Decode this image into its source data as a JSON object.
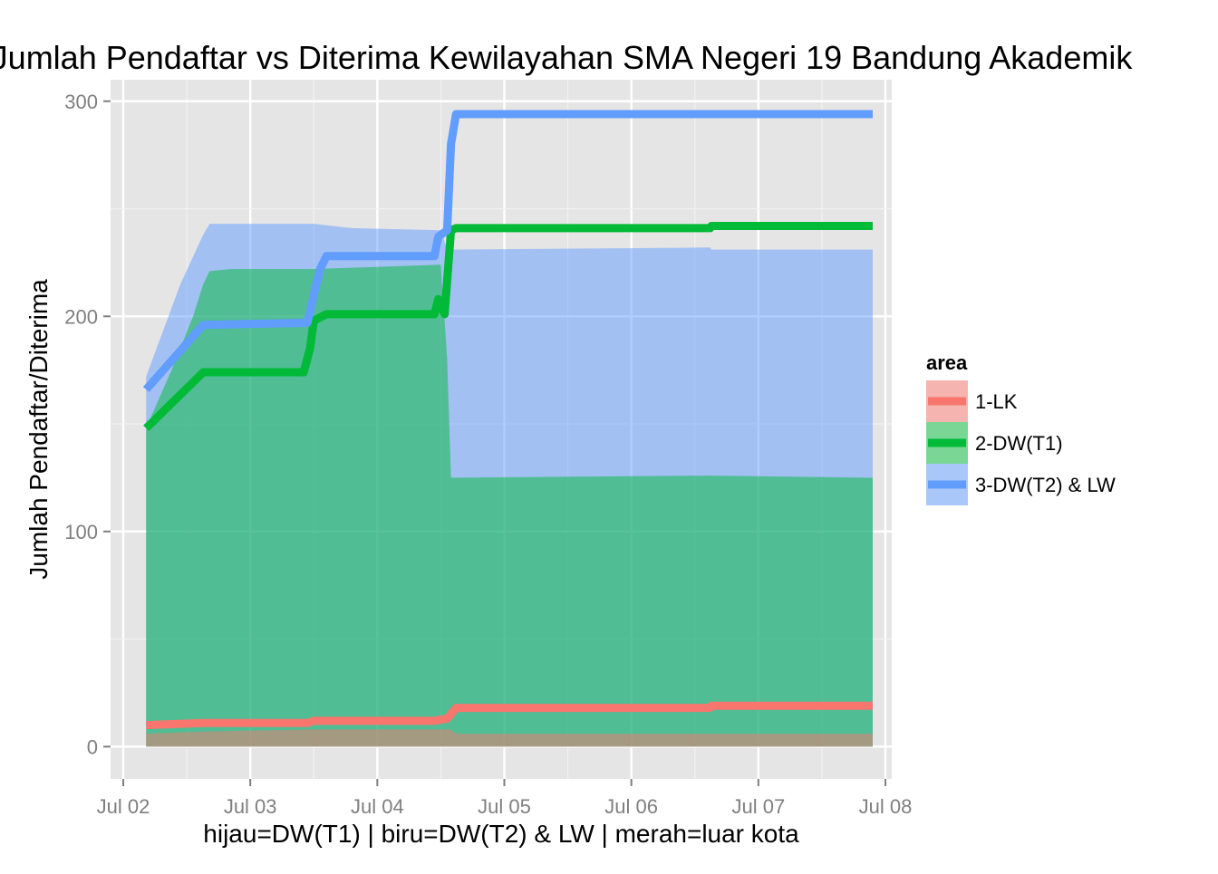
{
  "chart_data": {
    "type": "area",
    "title": "Jumlah Pendaftar vs Diterima Kewilayahan SMA Negeri 19 Bandung Akademik",
    "xlabel": "hijau=DW(T1) | biru=DW(T2) & LW | merah=luar kota",
    "ylabel": "Jumlah Pendaftar/Diterima",
    "x_ticks": [
      "Jul 02",
      "Jul 03",
      "Jul 04",
      "Jul 05",
      "Jul 06",
      "Jul 07",
      "Jul 08"
    ],
    "y_ticks": [
      "0",
      "100",
      "200",
      "300"
    ],
    "xlim_days": [
      1.9,
      8.05
    ],
    "ylim": [
      -15,
      310
    ],
    "grid": true,
    "legend": {
      "title": "area",
      "position": "right",
      "entries": [
        {
          "label": "1-LK",
          "color": "#f8766d"
        },
        {
          "label": "2-DW(T1)",
          "color": "#00ba38"
        },
        {
          "label": "3-DW(T2) & LW",
          "color": "#619cff"
        }
      ]
    },
    "area_series": [
      {
        "name": "1-LK",
        "color": "#f8766d",
        "x": [
          2.18,
          2.63,
          3.5,
          4.58,
          4.62,
          6.62,
          6.63,
          7.9
        ],
        "y": [
          6,
          7,
          8,
          8,
          6,
          6,
          6,
          6
        ]
      },
      {
        "name": "2-DW(T1)",
        "color": "#00ba38",
        "x": [
          2.18,
          2.38,
          2.55,
          2.63,
          2.68,
          2.85,
          3.5,
          4.5,
          4.55,
          4.58,
          6.62,
          6.63,
          7.9
        ],
        "y": [
          148,
          175,
          200,
          215,
          221,
          222,
          222,
          224,
          180,
          125,
          126,
          126,
          125
        ]
      },
      {
        "name": "3-DW(T2) & LW",
        "color": "#619cff",
        "x": [
          2.18,
          2.45,
          2.63,
          2.68,
          3.5,
          3.8,
          4.5,
          4.55,
          6.62,
          6.63,
          7.9
        ],
        "y": [
          172,
          215,
          238,
          243,
          243,
          241,
          240,
          231,
          232,
          231,
          231
        ]
      }
    ],
    "line_series": [
      {
        "name": "1-LK",
        "color": "#f8766d",
        "x": [
          2.18,
          2.63,
          3.45,
          3.5,
          4.45,
          4.55,
          4.62,
          6.62,
          6.63,
          7.9
        ],
        "y": [
          10,
          11,
          11,
          12,
          12,
          13,
          18,
          18,
          19,
          19
        ]
      },
      {
        "name": "2-DW(T1)",
        "color": "#00ba38",
        "x": [
          2.18,
          2.63,
          3.42,
          3.47,
          3.5,
          3.6,
          4.45,
          4.48,
          4.53,
          4.58,
          4.62,
          6.62,
          6.63,
          7.9
        ],
        "y": [
          148,
          174,
          174,
          185,
          198,
          201,
          201,
          208,
          201,
          240,
          241,
          241,
          242,
          242
        ]
      },
      {
        "name": "3-DW(T2) & LW",
        "color": "#619cff",
        "x": [
          2.18,
          2.63,
          3.45,
          3.5,
          3.55,
          3.6,
          4.45,
          4.48,
          4.55,
          4.58,
          4.62,
          7.9
        ],
        "y": [
          166,
          196,
          197,
          210,
          222,
          228,
          228,
          237,
          240,
          280,
          294,
          294
        ]
      }
    ]
  }
}
